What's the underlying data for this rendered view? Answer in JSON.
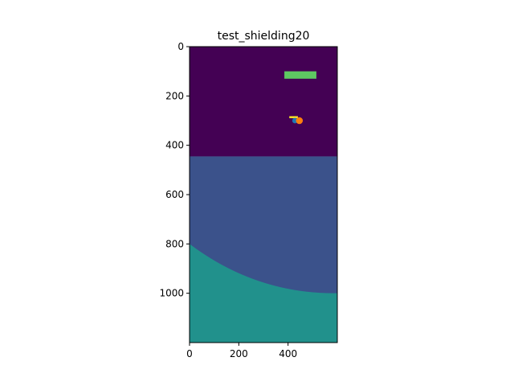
{
  "chart_data": {
    "type": "heatmap",
    "title": "test_shielding20",
    "xlabel": "",
    "ylabel": "",
    "xlim": [
      0,
      600
    ],
    "ylim": [
      1200,
      0
    ],
    "y_inverted": true,
    "grid": false,
    "colormap": "viridis",
    "x_ticks": [
      0,
      200,
      400
    ],
    "y_ticks": [
      0,
      200,
      400,
      600,
      800,
      1000
    ],
    "regions": [
      {
        "name": "background-top",
        "shape": "rect",
        "x": [
          0,
          600
        ],
        "y": [
          0,
          445
        ],
        "color": "#440154"
      },
      {
        "name": "middle-layer",
        "shape": "rect",
        "x": [
          0,
          600
        ],
        "y": [
          445,
          1200
        ],
        "color": "#3b528b"
      },
      {
        "name": "bottom-curved-layer",
        "shape": "arc",
        "from": [
          0,
          800
        ],
        "to": [
          600,
          1000
        ],
        "bulge": "down-left",
        "color": "#21918c"
      },
      {
        "name": "green-bar",
        "shape": "rect",
        "x": [
          385,
          515
        ],
        "y": [
          100,
          130
        ],
        "color": "#5ec962"
      },
      {
        "name": "yellow-dash",
        "shape": "rect",
        "x": [
          405,
          440
        ],
        "y": [
          282,
          290
        ],
        "color": "#fde725"
      },
      {
        "name": "blue-dot",
        "shape": "circle",
        "cx": 428,
        "cy": 300,
        "r": 11,
        "color": "#1f77b4"
      },
      {
        "name": "orange-dot",
        "shape": "circle",
        "cx": 446,
        "cy": 300,
        "r": 14,
        "color": "#ff7f0e"
      }
    ]
  }
}
